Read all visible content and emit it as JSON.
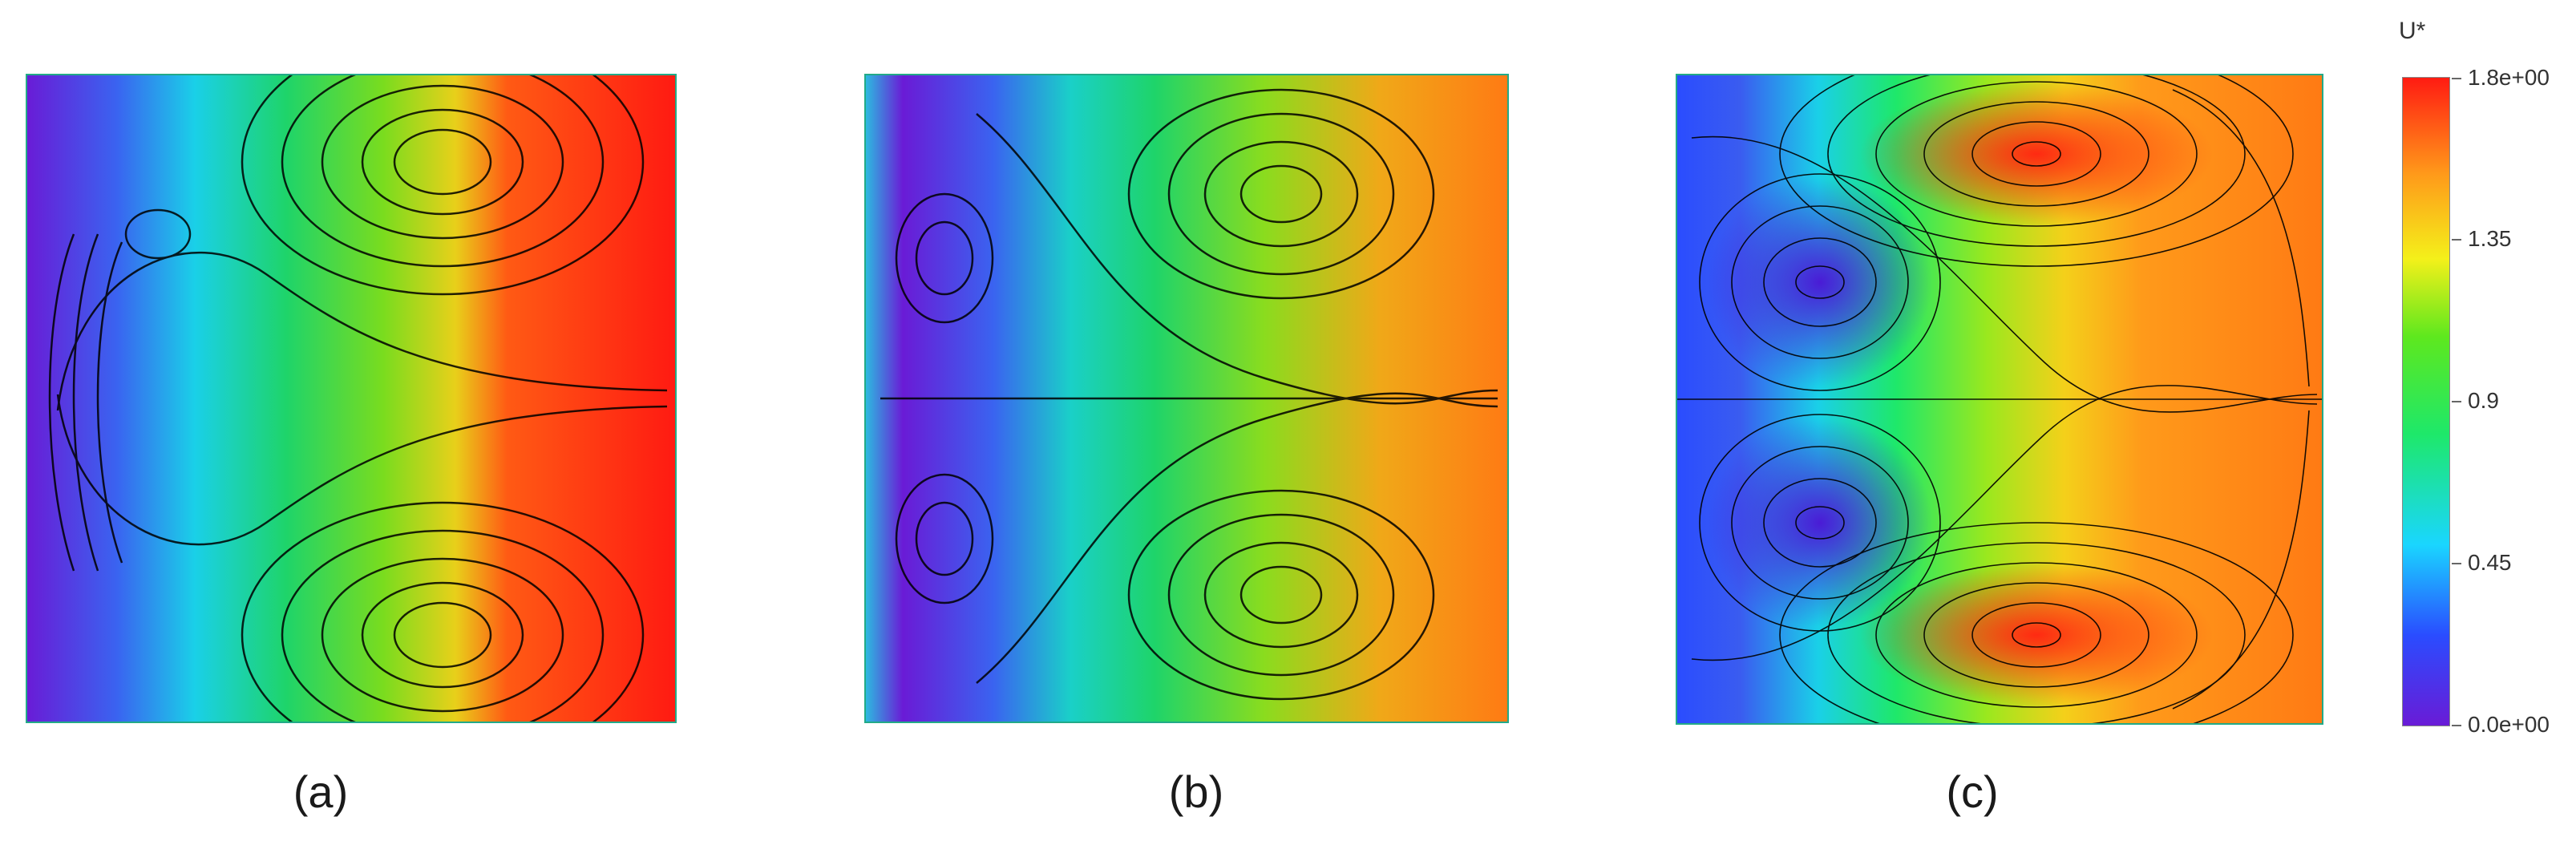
{
  "panels": [
    {
      "id": "a",
      "caption": "(a)"
    },
    {
      "id": "b",
      "caption": "(b)"
    },
    {
      "id": "c",
      "caption": "(c)"
    }
  ],
  "colorbar": {
    "title": "U*",
    "ticks": [
      "1.8e+00",
      "1.35",
      "0.9",
      "0.45",
      "0.0e+00"
    ],
    "range": [
      0.0,
      1.8
    ],
    "colormap": [
      "#6a1bd6",
      "#2a4cff",
      "#1ad6ff",
      "#1ee86a",
      "#5ee81e",
      "#f4f01a",
      "#ff9a1a",
      "#ff1a12"
    ]
  }
}
